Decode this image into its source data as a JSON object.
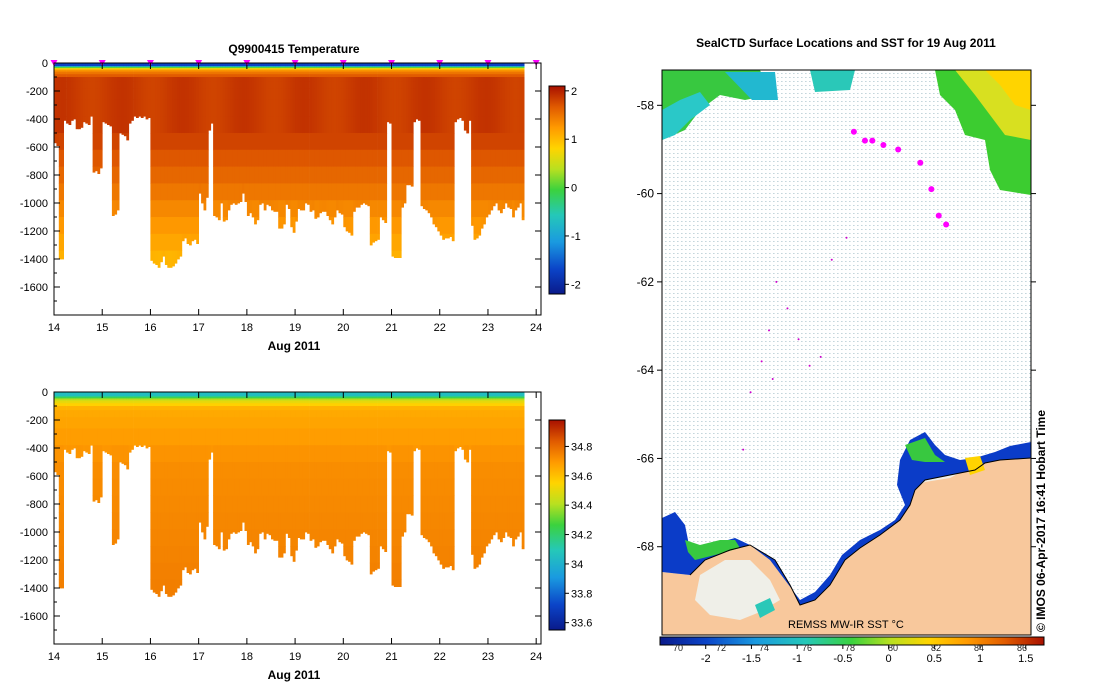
{
  "chart_data": [
    {
      "type": "heatmap",
      "title": "Q9900415  Temperature",
      "xlabel": "Aug 2011",
      "ylabel": "",
      "xlim": [
        14,
        24.1
      ],
      "ylim": [
        -1800,
        0
      ],
      "x_ticks": [
        "14",
        "15",
        "16",
        "17",
        "18",
        "19",
        "20",
        "21",
        "22",
        "23",
        "24"
      ],
      "y_ticks": [
        "0",
        "-200",
        "-400",
        "-600",
        "-800",
        "-1000",
        "-1200",
        "-1400",
        "-1600"
      ],
      "colorbar": {
        "min": -2.2,
        "max": 2.1,
        "ticks": [
          "2",
          "1",
          "0",
          "-1",
          "-2"
        ]
      },
      "profile_days": [
        14.0,
        14.05,
        14.1,
        14.15,
        14.2,
        14.25,
        14.3,
        14.35,
        14.4,
        14.45,
        14.5,
        14.55,
        14.6,
        14.65,
        14.7,
        14.75,
        14.8,
        14.85,
        14.9,
        14.95,
        15.0,
        15.05,
        15.1,
        15.15,
        15.2,
        15.25,
        15.3,
        15.35,
        15.4,
        15.45,
        15.5,
        15.55,
        15.6,
        15.65,
        15.7,
        15.75,
        15.8,
        15.85,
        15.9,
        15.95,
        16.0,
        16.05,
        16.1,
        16.15,
        16.2,
        16.25,
        16.3,
        16.35,
        16.4,
        16.45,
        16.5,
        16.55,
        16.6,
        16.65,
        16.7,
        16.75,
        16.8,
        16.85,
        16.9,
        16.95,
        17.0,
        17.05,
        17.1,
        17.15,
        17.2,
        17.25,
        17.3,
        17.35,
        17.4,
        17.45,
        17.5,
        17.55,
        17.6,
        17.65,
        17.7,
        17.75,
        17.8,
        17.85,
        17.9,
        17.95,
        18.0,
        18.05,
        18.1,
        18.15,
        18.2,
        18.25,
        18.3,
        18.35,
        18.4,
        18.45,
        18.5,
        18.55,
        18.6,
        18.65,
        18.7,
        18.75,
        18.8,
        18.85,
        18.9,
        18.95,
        19.0,
        19.05,
        19.1,
        19.15,
        19.2,
        19.25,
        19.3,
        19.35,
        19.4,
        19.45,
        19.5,
        19.55,
        19.6,
        19.65,
        19.7,
        19.75,
        19.8,
        19.85,
        19.9,
        19.95,
        20.0,
        20.05,
        20.1,
        20.15,
        20.2,
        20.25,
        20.3,
        20.35,
        20.4,
        20.45,
        20.5,
        20.55,
        20.6,
        20.65,
        20.7,
        20.75,
        20.8,
        20.85,
        20.9,
        20.95,
        21.0,
        21.05,
        21.1,
        21.15,
        21.2,
        21.25,
        21.3,
        21.35,
        21.4,
        21.45,
        21.5,
        21.55,
        21.6,
        21.65,
        21.7,
        21.75,
        21.8,
        21.85,
        21.9,
        21.95,
        22.0,
        22.05,
        22.1,
        22.15,
        22.2,
        22.25,
        22.3,
        22.35,
        22.4,
        22.45,
        22.5,
        22.55,
        22.6,
        22.65,
        22.7,
        22.75,
        22.8,
        22.85,
        22.9,
        22.95,
        23.0,
        23.05,
        23.1,
        23.15,
        23.2,
        23.25,
        23.3,
        23.35,
        23.4,
        23.45,
        23.5,
        23.55,
        23.6,
        23.65,
        23.7,
        23.75,
        23.8,
        23.85,
        23.9,
        23.95,
        24.0,
        24.05
      ],
      "profile_max_depth_m": [
        570,
        590,
        1400,
        1400,
        410,
        430,
        440,
        410,
        400,
        470,
        470,
        460,
        420,
        430,
        440,
        380,
        780,
        770,
        790,
        750,
        420,
        430,
        440,
        450,
        1090,
        1080,
        1050,
        500,
        510,
        520,
        550,
        430,
        410,
        380,
        390,
        380,
        390,
        380,
        400,
        390,
        1410,
        1430,
        1440,
        1460,
        1420,
        1380,
        1440,
        1460,
        1470,
        1450,
        1430,
        1400,
        1380,
        1270,
        1250,
        1290,
        1300,
        1270,
        1260,
        1290,
        930,
        1000,
        1050,
        960,
        480,
        430,
        1090,
        1100,
        1120,
        1000,
        1130,
        1120,
        1050,
        1010,
        1000,
        1010,
        1000,
        990,
        930,
        990,
        1090,
        1070,
        1100,
        1150,
        1120,
        1010,
        1000,
        1050,
        1010,
        1020,
        1050,
        1060,
        1060,
        1180,
        1180,
        1150,
        1010,
        1040,
        1170,
        1210,
        1130,
        1040,
        1050,
        1050,
        1000,
        1010,
        1060,
        1050,
        1110,
        1100,
        1070,
        1060,
        1060,
        1090,
        1120,
        1150,
        1100,
        1050,
        1070,
        1080,
        1170,
        1200,
        1210,
        1230,
        1060,
        1030,
        1030,
        1010,
        1000,
        1010,
        1020,
        1300,
        1280,
        1270,
        1260,
        1100,
        1120,
        1140,
        420,
        430,
        1380,
        1390,
        1390,
        1390,
        1030,
        1000,
        870,
        870,
        880,
        420,
        400,
        410,
        1020,
        1040,
        1050,
        1070,
        1100,
        1150,
        1170,
        1200,
        1230,
        1260,
        1250,
        1250,
        1240,
        1270,
        420,
        400,
        390,
        410,
        480,
        500,
        410,
        1160,
        1260,
        1250,
        1230,
        1180,
        1150,
        1100,
        1080,
        1050,
        1020,
        1000,
        1050,
        1070,
        1040,
        1000,
        1030,
        1040,
        1100,
        1050,
        1030,
        1000,
        1120
      ],
      "profile_marker_days": [
        14.0,
        15.0,
        16.0,
        17.0,
        18.0,
        19.0,
        20.0,
        21.0,
        22.0,
        23.0,
        24.0
      ]
    },
    {
      "type": "heatmap",
      "title": "",
      "xlabel": "Aug 2011",
      "ylabel": "",
      "xlim": [
        14,
        24.1
      ],
      "ylim": [
        -1800,
        0
      ],
      "x_ticks": [
        "14",
        "15",
        "16",
        "17",
        "18",
        "19",
        "20",
        "21",
        "22",
        "23",
        "24"
      ],
      "y_ticks": [
        "0",
        "-200",
        "-400",
        "-600",
        "-800",
        "-1000",
        "-1200",
        "-1400",
        "-1600"
      ],
      "colorbar": {
        "min": 33.55,
        "max": 34.98,
        "ticks": [
          "34.8",
          "34.6",
          "34.4",
          "34.2",
          "34",
          "33.8",
          "33.6"
        ]
      },
      "surface_value": 34.05,
      "deep_value": 34.72
    },
    {
      "type": "scatter",
      "title": "SealCTD Surface Locations and SST for 19 Aug 2011",
      "xlabel": "",
      "ylabel": "",
      "ylim": [
        -70,
        -57.2
      ],
      "y_ticks": [
        "-58",
        "-60",
        "-62",
        "-64",
        "-66",
        "-68"
      ],
      "colorbar_label": "REMSS MW-IR SST °C",
      "colorbar": {
        "min": -2.5,
        "max": 1.7,
        "ticks": [
          "-2",
          "-1.5",
          "-1",
          "-0.5",
          "0",
          "0.5",
          "1",
          "1.5"
        ]
      },
      "colorbar_overlay_ticks": [
        "70",
        "72",
        "74",
        "76",
        "78",
        "80",
        "82",
        "84",
        "86"
      ],
      "seal_positions": [
        {
          "lon_frac": 0.52,
          "lat": -58.6
        },
        {
          "lon_frac": 0.55,
          "lat": -58.8
        },
        {
          "lon_frac": 0.57,
          "lat": -58.8
        },
        {
          "lon_frac": 0.6,
          "lat": -58.9
        },
        {
          "lon_frac": 0.64,
          "lat": -59.0
        },
        {
          "lon_frac": 0.7,
          "lat": -59.3
        },
        {
          "lon_frac": 0.73,
          "lat": -59.9
        },
        {
          "lon_frac": 0.75,
          "lat": -60.5
        },
        {
          "lon_frac": 0.77,
          "lat": -60.7
        }
      ],
      "track_points": [
        {
          "lon_frac": 0.31,
          "lat": -62.0
        },
        {
          "lon_frac": 0.29,
          "lat": -63.1
        },
        {
          "lon_frac": 0.27,
          "lat": -63.8
        },
        {
          "lon_frac": 0.34,
          "lat": -62.6
        },
        {
          "lon_frac": 0.37,
          "lat": -63.3
        },
        {
          "lon_frac": 0.4,
          "lat": -63.9
        },
        {
          "lon_frac": 0.43,
          "lat": -63.7
        },
        {
          "lon_frac": 0.46,
          "lat": -61.5
        },
        {
          "lon_frac": 0.5,
          "lat": -61.0
        },
        {
          "lon_frac": 0.24,
          "lat": -64.5
        },
        {
          "lon_frac": 0.22,
          "lat": -65.8
        },
        {
          "lon_frac": 0.3,
          "lat": -64.2
        }
      ],
      "watermark": "© IMOS 06-Apr-2017 16:41 Hobart Time"
    }
  ]
}
